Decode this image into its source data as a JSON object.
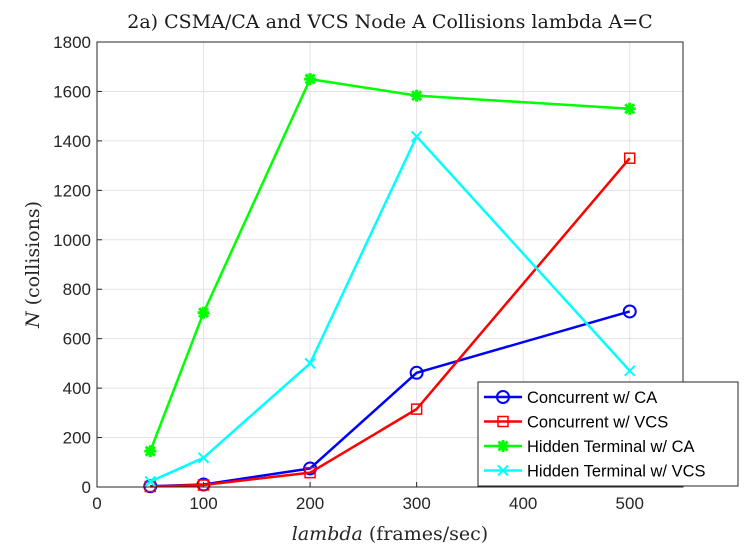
{
  "chart_data": {
    "type": "line",
    "title": "2a) CSMA/CA and VCS Node A Collisions lambda A=C",
    "xlabel": {
      "italic": "lambda",
      "rest": " (frames/sec)"
    },
    "ylabel": {
      "italic": "N",
      "rest": " (collisions)"
    },
    "xlim": [
      0,
      550
    ],
    "ylim": [
      0,
      1800
    ],
    "xticks": [
      0,
      100,
      200,
      300,
      400,
      500
    ],
    "yticks": [
      0,
      200,
      400,
      600,
      800,
      1000,
      1200,
      1400,
      1600,
      1800
    ],
    "grid": true,
    "legend_position": "bottom-right",
    "x": [
      50,
      100,
      200,
      300,
      500
    ],
    "series": [
      {
        "name": "Concurrent w/ CA",
        "values": [
          3,
          10,
          75,
          462,
          710
        ],
        "color": "#0000ff",
        "marker": "circle"
      },
      {
        "name": "Concurrent w/ VCS",
        "values": [
          2,
          8,
          58,
          315,
          1330
        ],
        "color": "#ff0000",
        "marker": "square"
      },
      {
        "name": "Hidden Terminal w/ CA",
        "values": [
          145,
          705,
          1650,
          1583,
          1530
        ],
        "color": "#00ff00",
        "marker": "asterisk"
      },
      {
        "name": "Hidden Terminal w/ VCS",
        "values": [
          22,
          118,
          500,
          1418,
          470
        ],
        "color": "#00ffff",
        "marker": "x"
      }
    ]
  }
}
